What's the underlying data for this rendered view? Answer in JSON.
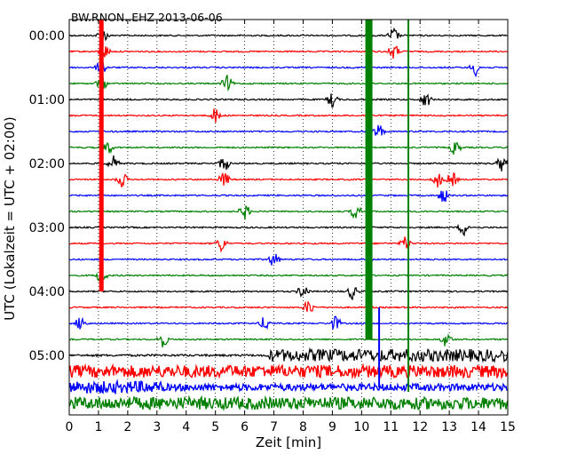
{
  "chart_data": {
    "type": "line",
    "title": "BW.RNON..EHZ 2013-06-06",
    "xlabel": "Zeit  [min]",
    "ylabel": "UTC (Lokalzeit = UTC + 02:00)",
    "xlim": [
      0,
      15
    ],
    "x_ticks": [
      "0",
      "1",
      "2",
      "3",
      "4",
      "5",
      "6",
      "7",
      "8",
      "9",
      "10",
      "11",
      "12",
      "13",
      "14",
      "15"
    ],
    "y_ticks": [
      "00:00",
      "01:00",
      "02:00",
      "03:00",
      "04:00",
      "05:00"
    ],
    "traces_per_hour": 4,
    "trace_count": 24,
    "trace_colors": [
      "#000000",
      "#ff0000",
      "#0000ff",
      "#008000"
    ],
    "grid": "vertical dotted",
    "events_min": [
      1.1,
      10.25,
      11.6
    ],
    "colors": {
      "black": "#000000",
      "red": "#ff0000",
      "blue": "#0000ff",
      "green": "#008000"
    }
  }
}
